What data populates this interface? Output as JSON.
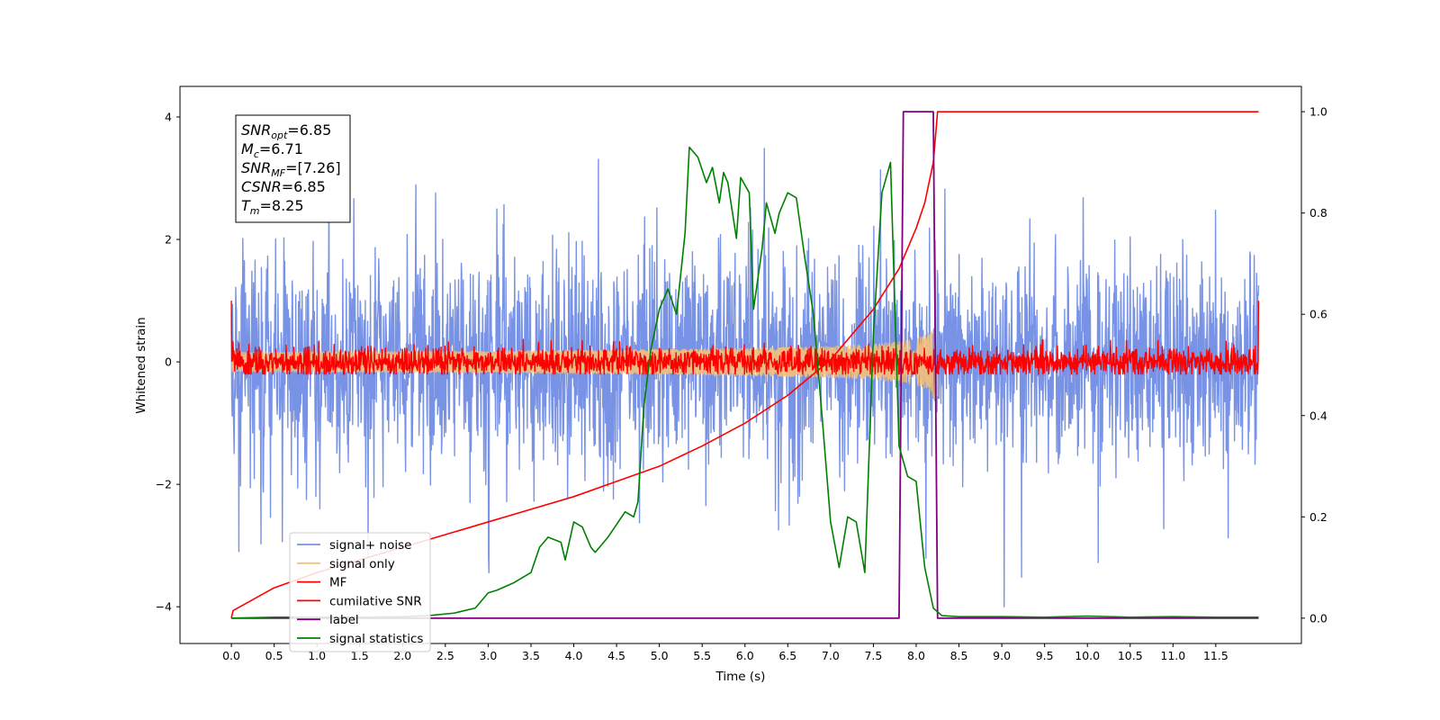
{
  "chart_data": {
    "type": "line",
    "xlabel": "Time (s)",
    "ylabel": "Whitened strain",
    "x_range": [
      -0.6,
      12.5
    ],
    "ylim": [
      -4.6,
      4.5
    ],
    "y2lim": [
      -0.05,
      1.05
    ],
    "x_ticks": [
      "0.0",
      "0.5",
      "1.0",
      "1.5",
      "2.0",
      "2.5",
      "3.0",
      "3.5",
      "4.0",
      "4.5",
      "5.0",
      "5.5",
      "6.0",
      "6.5",
      "7.0",
      "7.5",
      "8.0",
      "8.5",
      "9.0",
      "9.5",
      "10.0",
      "10.5",
      "11.0",
      "11.5"
    ],
    "y_ticks": [
      "−4",
      "−2",
      "0",
      "2",
      "4"
    ],
    "y2_ticks": [
      "0.0",
      "0.2",
      "0.4",
      "0.6",
      "0.8",
      "1.0"
    ],
    "grid": false,
    "legend_position": "lower-left",
    "stats_box": [
      {
        "symbol": "SNR",
        "sub": "opt",
        "value": "=6.85"
      },
      {
        "symbol": "M",
        "sub": "c",
        "value": "=6.71"
      },
      {
        "symbol": "SNR",
        "sub": "MF",
        "value": "=[7.26]"
      },
      {
        "symbol": "CSNR",
        "sub": "",
        "value": "=6.85"
      },
      {
        "symbol": "T",
        "sub": "m",
        "value": "=8.25"
      }
    ],
    "series": [
      {
        "name": "signal+ noise",
        "axis": "left",
        "color": "#7893e6",
        "kind": "noise",
        "x_range": [
          0,
          12
        ],
        "amplitude_std": 0.85,
        "envelope_max": 4.0
      },
      {
        "name": "signal only",
        "axis": "left",
        "color": "#f5c07a",
        "kind": "chirp",
        "x_range": [
          0,
          8.25
        ],
        "max_amplitude": 0.8
      },
      {
        "name": "MF",
        "axis": "left",
        "color": "#ff0000",
        "kind": "noise",
        "x_range": [
          0,
          12
        ],
        "amplitude_std": 0.12,
        "edge_value": 1.0
      },
      {
        "name": "cumilative SNR",
        "axis": "right",
        "color": "#ff0000",
        "x": [
          0,
          0.02,
          0.5,
          1.0,
          1.5,
          2.0,
          2.5,
          3.0,
          3.5,
          4.0,
          4.5,
          5.0,
          5.5,
          6.0,
          6.5,
          7.0,
          7.5,
          7.8,
          8.0,
          8.1,
          8.2,
          8.25,
          12.0
        ],
        "y": [
          0.0,
          0.015,
          0.06,
          0.09,
          0.115,
          0.14,
          0.165,
          0.19,
          0.215,
          0.24,
          0.27,
          0.3,
          0.34,
          0.385,
          0.44,
          0.51,
          0.61,
          0.69,
          0.77,
          0.82,
          0.9,
          1.0,
          1.0
        ]
      },
      {
        "name": "label",
        "axis": "right",
        "color": "#800080",
        "x": [
          0,
          7.8,
          7.85,
          8.2,
          8.25,
          12.0
        ],
        "y": [
          0,
          0,
          1,
          1,
          0,
          0
        ]
      },
      {
        "name": "signal statistics",
        "axis": "right",
        "color": "#008000",
        "x": [
          0,
          0.5,
          1.0,
          1.5,
          2.0,
          2.3,
          2.6,
          2.85,
          3.0,
          3.1,
          3.3,
          3.5,
          3.6,
          3.7,
          3.85,
          3.9,
          4.0,
          4.1,
          4.2,
          4.25,
          4.4,
          4.6,
          4.7,
          4.75,
          4.82,
          4.9,
          5.0,
          5.1,
          5.2,
          5.3,
          5.35,
          5.45,
          5.55,
          5.62,
          5.7,
          5.75,
          5.8,
          5.9,
          5.95,
          6.05,
          6.1,
          6.2,
          6.25,
          6.35,
          6.4,
          6.5,
          6.6,
          6.7,
          6.8,
          6.9,
          7.0,
          7.1,
          7.2,
          7.3,
          7.4,
          7.5,
          7.6,
          7.7,
          7.8,
          7.9,
          8.0,
          8.1,
          8.2,
          8.3,
          8.5,
          9.0,
          9.5,
          10.0,
          10.5,
          11.0,
          11.5,
          12.0
        ],
        "y": [
          0.0,
          0.002,
          0.002,
          0.002,
          0.003,
          0.005,
          0.01,
          0.02,
          0.05,
          0.055,
          0.07,
          0.09,
          0.14,
          0.16,
          0.15,
          0.115,
          0.19,
          0.18,
          0.14,
          0.13,
          0.16,
          0.21,
          0.2,
          0.23,
          0.42,
          0.53,
          0.61,
          0.65,
          0.6,
          0.76,
          0.93,
          0.91,
          0.86,
          0.89,
          0.82,
          0.88,
          0.86,
          0.75,
          0.87,
          0.84,
          0.61,
          0.73,
          0.82,
          0.76,
          0.8,
          0.84,
          0.83,
          0.71,
          0.6,
          0.4,
          0.19,
          0.1,
          0.2,
          0.19,
          0.09,
          0.56,
          0.84,
          0.9,
          0.34,
          0.28,
          0.27,
          0.1,
          0.02,
          0.005,
          0.003,
          0.003,
          0.002,
          0.004,
          0.002,
          0.003,
          0.002,
          0.002
        ]
      }
    ]
  }
}
